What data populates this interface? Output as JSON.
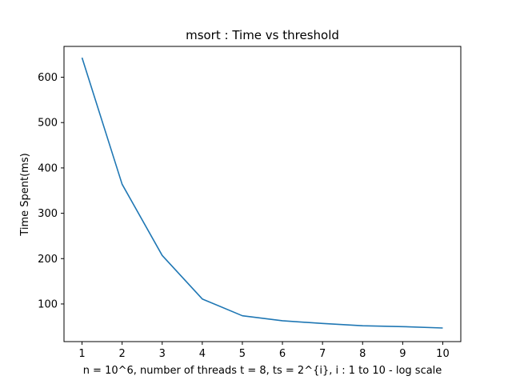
{
  "chart_data": {
    "type": "line",
    "title": "msort : Time vs threshold",
    "xlabel": "n = 10^6, number of threads t = 8, ts = 2^{i}, i : 1 to 10 - log scale",
    "ylabel": "Time Spent(ms)",
    "x": [
      1,
      2,
      3,
      4,
      5,
      6,
      7,
      8,
      9,
      10
    ],
    "series": [
      {
        "values": [
          643,
          364,
          207,
          111,
          74,
          63,
          57,
          52,
          50,
          47
        ],
        "color": "#1f77b4"
      }
    ],
    "xlim": [
      0.55,
      10.45
    ],
    "ylim": [
      17,
      668
    ],
    "xticks": [
      1,
      2,
      3,
      4,
      5,
      6,
      7,
      8,
      9,
      10
    ],
    "yticks": [
      100,
      200,
      300,
      400,
      500,
      600
    ],
    "grid": false,
    "legend": "none"
  }
}
